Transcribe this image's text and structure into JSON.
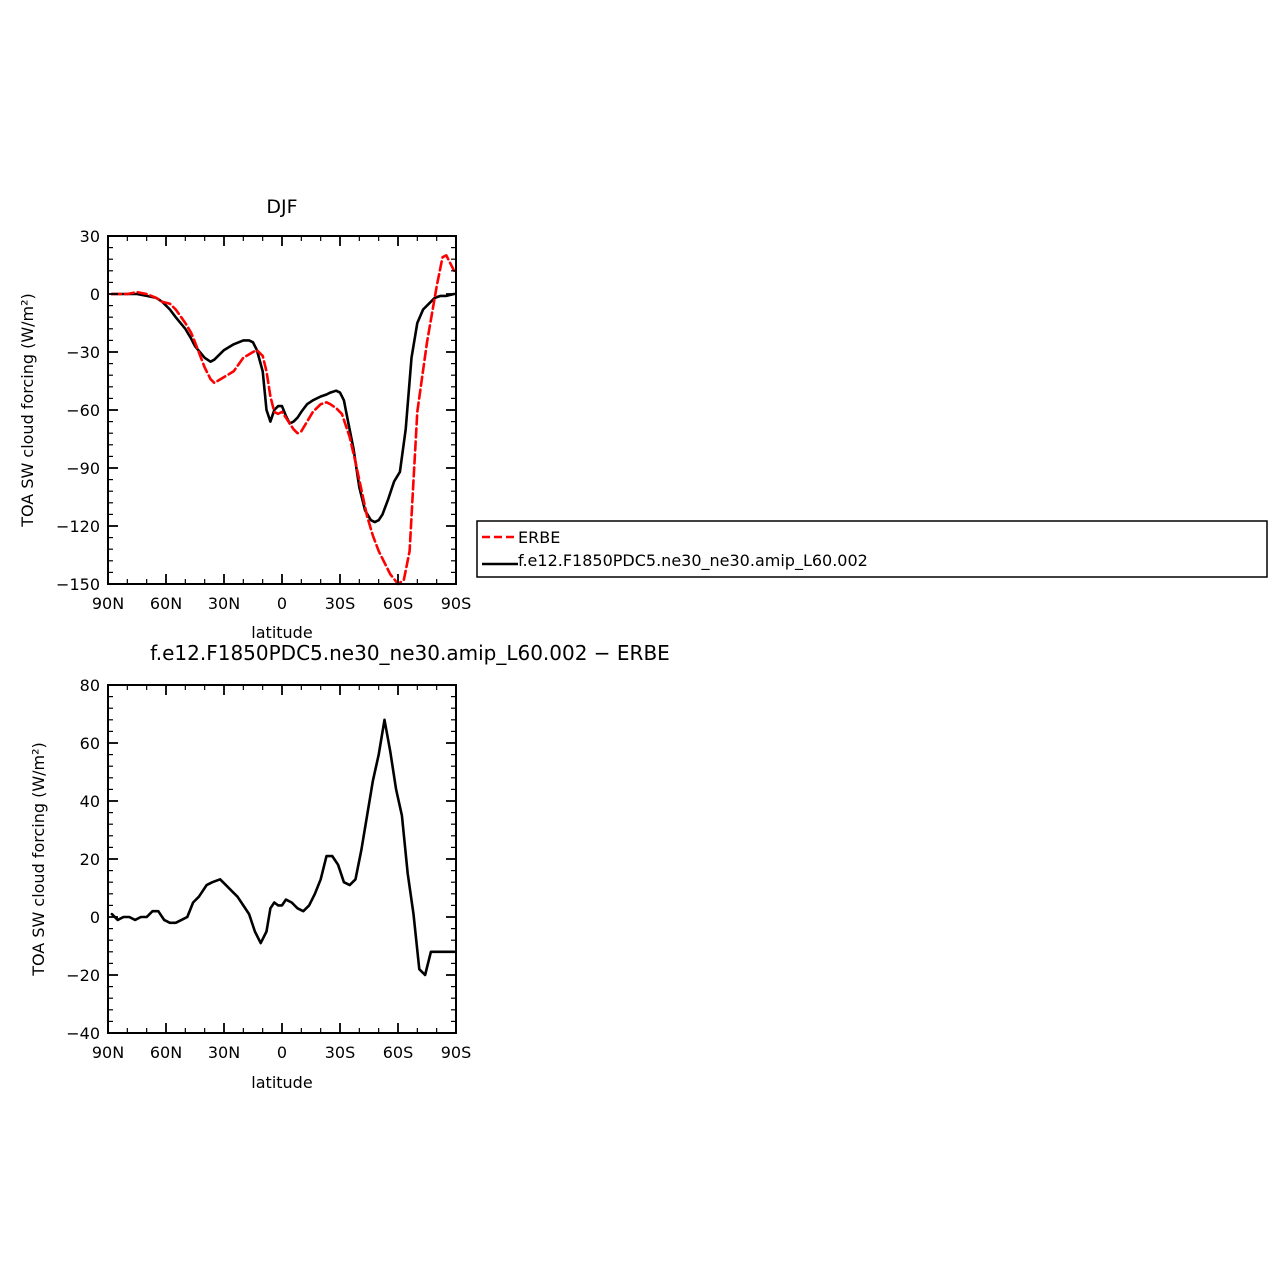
{
  "colors": {
    "erbe": "#ff0000",
    "model": "#000000"
  },
  "chart_data": [
    {
      "type": "line",
      "title": "DJF",
      "xlabel": "latitude",
      "ylabel": "TOA SW cloud forcing (W/m²)",
      "xlim": [
        -90,
        90
      ],
      "ylim": [
        -150,
        30
      ],
      "xticks": [
        -90,
        -60,
        -30,
        0,
        30,
        60,
        90
      ],
      "xtick_labels": [
        "90N",
        "60N",
        "30N",
        "0",
        "30S",
        "60S",
        "90S"
      ],
      "yticks": [
        -150,
        -120,
        -90,
        -60,
        -30,
        0,
        30
      ],
      "ytick_labels": [
        "−150",
        "−120",
        "−90",
        "−60",
        "−30",
        "0",
        "30"
      ],
      "legend": {
        "placement": "right",
        "entries": [
          "ERBE",
          "f.e12.F1850PDC5.ne30_ne30.amip_L60.002"
        ]
      },
      "series": [
        {
          "name": "ERBE",
          "style": "dashed",
          "color": "#ff0000",
          "x": [
            -88,
            -85,
            -80,
            -75,
            -70,
            -65,
            -62,
            -58,
            -55,
            -50,
            -47,
            -45,
            -40,
            -37,
            -35,
            -30,
            -25,
            -20,
            -15,
            -13,
            -10,
            -8,
            -6,
            -4,
            -2,
            0,
            2,
            4,
            6,
            8,
            10,
            13,
            16,
            20,
            23,
            25,
            28,
            31,
            35,
            38,
            41,
            44,
            47,
            50,
            53,
            56,
            60,
            63,
            66,
            70,
            75,
            80,
            83,
            85,
            87,
            89
          ],
          "y": [
            0,
            0,
            0,
            1,
            0,
            -2,
            -4,
            -5,
            -8,
            -15,
            -20,
            -25,
            -38,
            -44,
            -46,
            -43,
            -40,
            -33,
            -30,
            -29,
            -32,
            -40,
            -53,
            -61,
            -62,
            -61,
            -64,
            -67,
            -70,
            -72,
            -71,
            -66,
            -61,
            -57,
            -56,
            -57,
            -59,
            -62,
            -74,
            -87,
            -101,
            -115,
            -125,
            -133,
            -139,
            -145,
            -150,
            -148,
            -133,
            -61,
            -25,
            4,
            19,
            20,
            16,
            12
          ]
        },
        {
          "name": "f.e12.F1850PDC5.ne30_ne30.amip_L60.002",
          "style": "solid",
          "color": "#000000",
          "x": [
            -88,
            -85,
            -80,
            -75,
            -70,
            -65,
            -62,
            -58,
            -55,
            -50,
            -47,
            -45,
            -40,
            -37,
            -35,
            -30,
            -25,
            -20,
            -17,
            -15,
            -13,
            -10,
            -8,
            -6,
            -4,
            -2,
            0,
            2,
            4,
            6,
            8,
            10,
            13,
            16,
            20,
            23,
            25,
            28,
            30,
            32,
            34,
            37,
            40,
            43,
            46,
            48,
            50,
            52,
            55,
            58,
            61,
            64,
            67,
            70,
            73,
            76,
            79,
            82,
            85,
            89
          ],
          "y": [
            0,
            0,
            0,
            0,
            -1,
            -2,
            -4,
            -8,
            -12,
            -18,
            -23,
            -27,
            -33,
            -35,
            -34,
            -29,
            -26,
            -24,
            -24,
            -25,
            -29,
            -40,
            -60,
            -66,
            -60,
            -58,
            -58,
            -63,
            -67,
            -66,
            -64,
            -61,
            -57,
            -55,
            -53,
            -52,
            -51,
            -50,
            -51,
            -55,
            -65,
            -80,
            -100,
            -112,
            -117,
            -118,
            -117,
            -114,
            -106,
            -97,
            -92,
            -70,
            -33,
            -15,
            -8,
            -5,
            -2,
            -1,
            -1,
            0
          ]
        }
      ]
    },
    {
      "type": "line",
      "title": "f.e12.F1850PDC5.ne30_ne30.amip_L60.002 − ERBE",
      "xlabel": "latitude",
      "ylabel": "TOA SW cloud forcing (W/m²)",
      "xlim": [
        -90,
        90
      ],
      "ylim": [
        -40,
        80
      ],
      "xticks": [
        -90,
        -60,
        -30,
        0,
        30,
        60,
        90
      ],
      "xtick_labels": [
        "90N",
        "60N",
        "30N",
        "0",
        "30S",
        "60S",
        "90S"
      ],
      "yticks": [
        -40,
        -20,
        0,
        20,
        40,
        60,
        80
      ],
      "ytick_labels": [
        "−40",
        "−20",
        "0",
        "20",
        "40",
        "60",
        "80"
      ],
      "series": [
        {
          "color": "#000000",
          "style": "solid",
          "x": [
            -88,
            -85,
            -82,
            -79,
            -76,
            -73,
            -70,
            -67,
            -64,
            -61,
            -58,
            -55,
            -52,
            -49,
            -46,
            -43,
            -39,
            -36,
            -32,
            -29,
            -26,
            -23,
            -20,
            -17,
            -14,
            -11,
            -8,
            -6,
            -4,
            -2,
            0,
            2,
            5,
            8,
            11,
            14,
            17,
            20,
            23,
            26,
            29,
            32,
            35,
            38,
            41,
            44,
            47,
            50,
            53,
            56,
            59,
            62,
            65,
            68,
            71,
            74,
            77,
            80,
            83,
            86,
            89
          ],
          "y": [
            1,
            -1,
            0,
            0,
            -1,
            0,
            0,
            2,
            2,
            -1,
            -2,
            -2,
            -1,
            0,
            5,
            7,
            11,
            12,
            13,
            11,
            9,
            7,
            4,
            1,
            -5,
            -9,
            -5,
            3,
            5,
            4,
            4,
            6,
            5,
            3,
            2,
            4,
            8,
            13,
            21,
            21,
            18,
            12,
            11,
            13,
            23,
            35,
            47,
            56,
            68,
            57,
            44,
            35,
            15,
            1,
            -18,
            -20,
            -12,
            -12,
            -12,
            -12,
            -12
          ]
        }
      ]
    }
  ]
}
